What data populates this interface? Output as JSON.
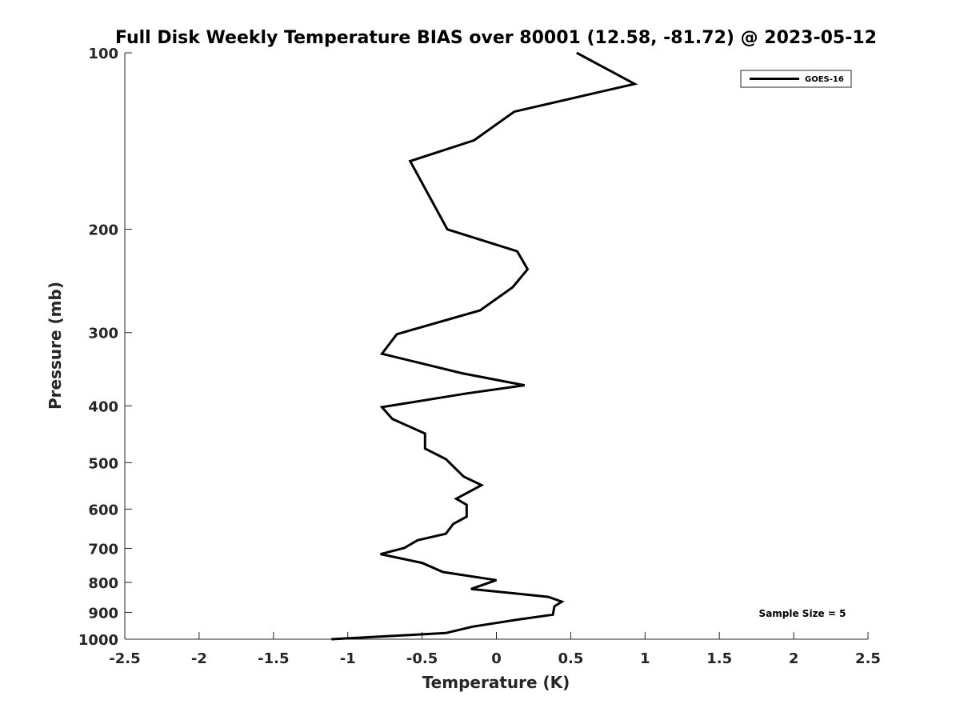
{
  "chart_data": {
    "type": "line",
    "title": "Full Disk Weekly Temperature BIAS over 80001 (12.58, -81.72) @ 2023-05-12",
    "xlabel": "Temperature (K)",
    "ylabel": "Pressure (mb)",
    "xlim": [
      -2.5,
      2.5
    ],
    "ylim": [
      100,
      1000
    ],
    "yscale": "log",
    "y_reversed": true,
    "x_ticks": [
      "-2.5",
      "-2",
      "-1.5",
      "-1",
      "-0.5",
      "0",
      "0.5",
      "1",
      "1.5",
      "2",
      "2.5"
    ],
    "x_tick_values": [
      -2.5,
      -2,
      -1.5,
      -1,
      -0.5,
      0,
      0.5,
      1,
      1.5,
      2,
      2.5
    ],
    "y_ticks": [
      "100",
      "200",
      "300",
      "400",
      "500",
      "600",
      "700",
      "800",
      "900",
      "1000"
    ],
    "y_tick_values": [
      100,
      200,
      300,
      400,
      500,
      600,
      700,
      800,
      900,
      1000
    ],
    "grid": false,
    "legend_position": "top-right",
    "annotation": "Sample Size = 5",
    "series": [
      {
        "name": "GOES-16",
        "color": "#000000",
        "x": [
          0.54,
          0.93,
          0.12,
          -0.15,
          -0.58,
          -0.33,
          0.14,
          0.21,
          0.11,
          -0.11,
          -0.67,
          -0.77,
          -0.23,
          0.19,
          -0.2,
          -0.77,
          -0.7,
          -0.48,
          -0.48,
          -0.34,
          -0.22,
          -0.1,
          -0.27,
          -0.2,
          -0.2,
          -0.29,
          -0.34,
          -0.53,
          -0.62,
          -0.78,
          -0.5,
          -0.36,
          0.0,
          -0.17,
          0.35,
          0.44,
          0.39,
          0.38,
          0.13,
          -0.16,
          -0.34,
          -1.11
        ],
        "y": [
          100,
          113,
          126,
          141,
          153,
          200,
          218,
          234,
          251,
          275,
          302,
          326,
          352,
          369,
          381,
          402,
          421,
          446,
          473,
          493,
          528,
          546,
          576,
          590,
          618,
          636,
          661,
          678,
          699,
          716,
          741,
          768,
          793,
          821,
          847,
          863,
          879,
          908,
          927,
          952,
          976,
          1000
        ]
      }
    ]
  }
}
